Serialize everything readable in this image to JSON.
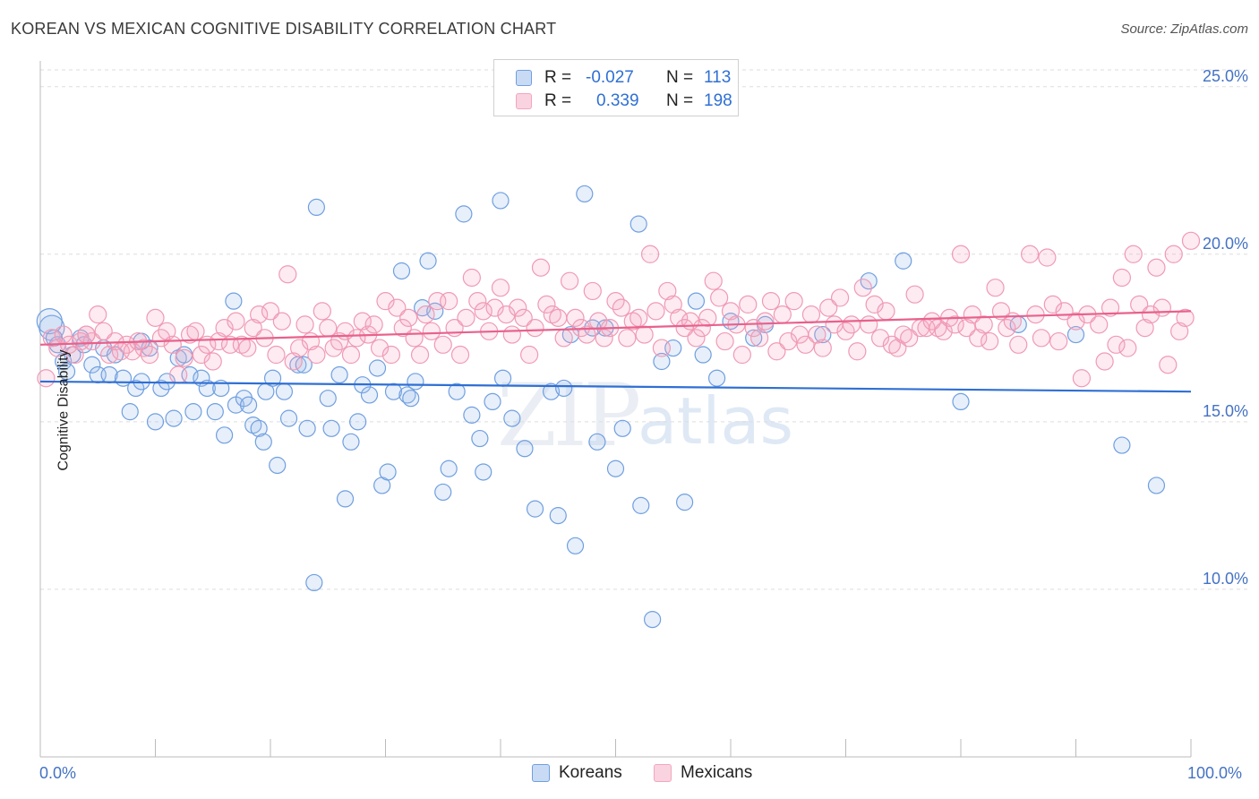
{
  "title": "KOREAN VS MEXICAN COGNITIVE DISABILITY CORRELATION CHART",
  "source": "Source: ZipAtlas.com",
  "watermark": {
    "zip": "ZIP",
    "atlas": "atlas"
  },
  "legend": {
    "rows": [
      {
        "r_label": "R =",
        "r_value": "-0.027",
        "n_label": "N =",
        "n_value": "113",
        "color": "#a8c4ec"
      },
      {
        "r_label": "R =",
        "r_value": "0.339",
        "n_label": "N =",
        "n_value": "198",
        "color": "#f4b6c8"
      }
    ]
  },
  "bottom_legend": {
    "koreans": "Koreans",
    "mexicans": "Mexicans"
  },
  "chart_data": {
    "type": "scatter",
    "ylabel": "Cognitive Disability",
    "xlabel": "",
    "xlim": [
      0,
      100
    ],
    "ylim": [
      5.0,
      25.5
    ],
    "x_tick_labels": [
      "0.0%",
      "100.0%"
    ],
    "y_ticks": [
      10,
      15,
      20,
      25
    ],
    "y_tick_labels": [
      "10.0%",
      "15.0%",
      "20.0%",
      "25.0%"
    ],
    "grid": true,
    "legend_placement": "top-center",
    "series": [
      {
        "name": "Koreans",
        "color": "#6f9fe0",
        "trend": {
          "x": [
            0,
            100
          ],
          "y": [
            16.2,
            15.9
          ],
          "color": "#2f6fd4"
        },
        "points": [
          [
            1,
            17.8
          ],
          [
            1.5,
            17.3
          ],
          [
            2,
            16.8
          ],
          [
            2.3,
            16.5
          ],
          [
            2.8,
            17.0
          ],
          [
            3.5,
            17.5
          ],
          [
            4.5,
            16.7
          ],
          [
            5,
            16.4
          ],
          [
            5.5,
            17.2
          ],
          [
            6,
            16.4
          ],
          [
            6.5,
            17.0
          ],
          [
            7.2,
            16.3
          ],
          [
            7.8,
            15.3
          ],
          [
            8.3,
            16.0
          ],
          [
            8.8,
            16.2
          ],
          [
            9.5,
            17.2
          ],
          [
            10,
            15.0
          ],
          [
            10.5,
            16.0
          ],
          [
            11,
            16.2
          ],
          [
            11.6,
            15.1
          ],
          [
            12,
            16.9
          ],
          [
            12.5,
            17.0
          ],
          [
            13,
            16.4
          ],
          [
            13.3,
            15.3
          ],
          [
            14,
            16.3
          ],
          [
            14.5,
            16.0
          ],
          [
            15.2,
            15.3
          ],
          [
            15.7,
            16.0
          ],
          [
            16,
            14.6
          ],
          [
            16.8,
            18.6
          ],
          [
            17,
            15.5
          ],
          [
            17.7,
            15.7
          ],
          [
            18.1,
            15.5
          ],
          [
            18.5,
            14.9
          ],
          [
            19,
            14.8
          ],
          [
            19.4,
            14.4
          ],
          [
            19.6,
            15.9
          ],
          [
            20.2,
            16.3
          ],
          [
            20.6,
            13.7
          ],
          [
            21.2,
            15.9
          ],
          [
            21.6,
            15.1
          ],
          [
            22.4,
            16.7
          ],
          [
            22.9,
            16.7
          ],
          [
            23.2,
            14.8
          ],
          [
            23.8,
            10.2
          ],
          [
            24,
            21.4
          ],
          [
            25,
            15.7
          ],
          [
            25.3,
            14.8
          ],
          [
            26,
            16.4
          ],
          [
            26.5,
            12.7
          ],
          [
            27,
            14.4
          ],
          [
            27.6,
            15.0
          ],
          [
            28,
            16.1
          ],
          [
            28.6,
            15.8
          ],
          [
            29.3,
            16.6
          ],
          [
            29.7,
            13.1
          ],
          [
            30.2,
            13.5
          ],
          [
            30.7,
            15.9
          ],
          [
            31.4,
            19.5
          ],
          [
            31.9,
            15.8
          ],
          [
            32.2,
            15.7
          ],
          [
            32.6,
            16.2
          ],
          [
            33.2,
            18.4
          ],
          [
            33.7,
            19.8
          ],
          [
            34.3,
            18.3
          ],
          [
            35,
            12.9
          ],
          [
            35.5,
            13.6
          ],
          [
            36.2,
            15.9
          ],
          [
            36.8,
            21.2
          ],
          [
            37.5,
            15.2
          ],
          [
            38.2,
            14.5
          ],
          [
            38.5,
            13.5
          ],
          [
            39.3,
            15.6
          ],
          [
            40,
            21.6
          ],
          [
            40.2,
            16.3
          ],
          [
            41,
            15.1
          ],
          [
            42.1,
            14.2
          ],
          [
            43,
            12.4
          ],
          [
            44.4,
            15.9
          ],
          [
            45,
            12.2
          ],
          [
            45.5,
            16.0
          ],
          [
            46.1,
            17.6
          ],
          [
            46.5,
            11.3
          ],
          [
            47.3,
            21.8
          ],
          [
            48,
            17.8
          ],
          [
            48.4,
            14.4
          ],
          [
            49.1,
            17.8
          ],
          [
            50,
            13.6
          ],
          [
            50.6,
            14.8
          ],
          [
            52,
            20.9
          ],
          [
            52.2,
            12.5
          ],
          [
            53.2,
            9.1
          ],
          [
            54,
            16.8
          ],
          [
            55,
            17.2
          ],
          [
            56,
            12.6
          ],
          [
            57,
            18.6
          ],
          [
            57.6,
            17.0
          ],
          [
            58.8,
            16.3
          ],
          [
            60,
            18.0
          ],
          [
            62,
            17.5
          ],
          [
            63,
            17.9
          ],
          [
            68,
            17.6
          ],
          [
            72,
            19.2
          ],
          [
            75,
            19.8
          ],
          [
            80,
            15.6
          ],
          [
            85,
            17.9
          ],
          [
            90,
            17.6
          ],
          [
            94,
            14.3
          ],
          [
            97,
            13.1
          ],
          [
            0.8,
            18.0
          ],
          [
            1.2,
            17.5
          ],
          [
            3.8,
            17.3
          ],
          [
            8.8,
            17.4
          ]
        ]
      },
      {
        "name": "Mexicans",
        "color": "#f4a6be",
        "trend": {
          "x": [
            0,
            100
          ],
          "y": [
            17.3,
            18.3
          ],
          "color": "#e8618c"
        },
        "points": [
          [
            0.5,
            16.3
          ],
          [
            1,
            17.5
          ],
          [
            1.5,
            17.2
          ],
          [
            2,
            17.6
          ],
          [
            2.5,
            17.3
          ],
          [
            3,
            17.0
          ],
          [
            3.5,
            17.4
          ],
          [
            4,
            17.6
          ],
          [
            4.5,
            17.4
          ],
          [
            5,
            18.2
          ],
          [
            5.5,
            17.7
          ],
          [
            6,
            17.0
          ],
          [
            6.5,
            17.4
          ],
          [
            7,
            17.1
          ],
          [
            7.5,
            17.3
          ],
          [
            8,
            17.1
          ],
          [
            8.5,
            17.4
          ],
          [
            9,
            17.2
          ],
          [
            9.5,
            17.0
          ],
          [
            10,
            18.1
          ],
          [
            10.5,
            17.5
          ],
          [
            11,
            17.7
          ],
          [
            11.5,
            17.3
          ],
          [
            12,
            16.4
          ],
          [
            12.5,
            16.9
          ],
          [
            13,
            17.6
          ],
          [
            13.5,
            17.7
          ],
          [
            14,
            17.0
          ],
          [
            14.5,
            17.3
          ],
          [
            15,
            16.8
          ],
          [
            15.5,
            17.4
          ],
          [
            16,
            17.8
          ],
          [
            16.5,
            17.3
          ],
          [
            17,
            18.0
          ],
          [
            17.5,
            17.3
          ],
          [
            18,
            17.2
          ],
          [
            18.5,
            17.8
          ],
          [
            19,
            18.2
          ],
          [
            19.5,
            17.5
          ],
          [
            20,
            18.3
          ],
          [
            20.5,
            17.0
          ],
          [
            21,
            18.0
          ],
          [
            21.5,
            19.4
          ],
          [
            22,
            16.8
          ],
          [
            22.5,
            17.2
          ],
          [
            23,
            17.9
          ],
          [
            23.5,
            17.4
          ],
          [
            24,
            17.0
          ],
          [
            24.5,
            18.3
          ],
          [
            25,
            17.8
          ],
          [
            25.5,
            17.2
          ],
          [
            26,
            17.4
          ],
          [
            26.5,
            17.7
          ],
          [
            27,
            17.0
          ],
          [
            27.5,
            17.5
          ],
          [
            28,
            18.0
          ],
          [
            28.5,
            17.6
          ],
          [
            29,
            17.9
          ],
          [
            29.5,
            17.2
          ],
          [
            30,
            18.6
          ],
          [
            30.5,
            17.0
          ],
          [
            31,
            18.4
          ],
          [
            31.5,
            17.8
          ],
          [
            32,
            18.1
          ],
          [
            32.5,
            17.5
          ],
          [
            33,
            17.0
          ],
          [
            33.5,
            18.2
          ],
          [
            34,
            17.7
          ],
          [
            34.5,
            18.6
          ],
          [
            35,
            17.3
          ],
          [
            35.5,
            18.6
          ],
          [
            36,
            17.8
          ],
          [
            36.5,
            17.0
          ],
          [
            37,
            18.1
          ],
          [
            37.5,
            19.3
          ],
          [
            38,
            18.6
          ],
          [
            38.5,
            18.3
          ],
          [
            39,
            17.7
          ],
          [
            39.5,
            18.4
          ],
          [
            40,
            19.0
          ],
          [
            40.5,
            18.2
          ],
          [
            41,
            17.6
          ],
          [
            41.5,
            18.4
          ],
          [
            42,
            18.1
          ],
          [
            42.5,
            17.0
          ],
          [
            43,
            17.8
          ],
          [
            43.5,
            19.6
          ],
          [
            44,
            18.5
          ],
          [
            44.5,
            18.2
          ],
          [
            45,
            18.1
          ],
          [
            45.5,
            17.5
          ],
          [
            46,
            19.2
          ],
          [
            46.5,
            18.1
          ],
          [
            47,
            17.8
          ],
          [
            47.5,
            17.6
          ],
          [
            48,
            18.9
          ],
          [
            48.5,
            18.0
          ],
          [
            49,
            17.5
          ],
          [
            49.5,
            17.8
          ],
          [
            50,
            18.6
          ],
          [
            50.5,
            18.4
          ],
          [
            51,
            17.5
          ],
          [
            51.5,
            18.0
          ],
          [
            52,
            18.1
          ],
          [
            52.5,
            17.6
          ],
          [
            53,
            20.0
          ],
          [
            53.5,
            18.3
          ],
          [
            54,
            17.2
          ],
          [
            54.5,
            18.9
          ],
          [
            55,
            18.5
          ],
          [
            55.5,
            18.1
          ],
          [
            56,
            17.8
          ],
          [
            56.5,
            18.0
          ],
          [
            57,
            17.5
          ],
          [
            57.5,
            17.8
          ],
          [
            58,
            18.1
          ],
          [
            58.5,
            19.2
          ],
          [
            59,
            18.7
          ],
          [
            59.5,
            17.4
          ],
          [
            60,
            18.3
          ],
          [
            60.5,
            17.9
          ],
          [
            61,
            17.0
          ],
          [
            61.5,
            18.5
          ],
          [
            62,
            17.8
          ],
          [
            62.5,
            17.5
          ],
          [
            63,
            18.0
          ],
          [
            63.5,
            18.6
          ],
          [
            64,
            17.1
          ],
          [
            64.5,
            18.2
          ],
          [
            65,
            17.4
          ],
          [
            65.5,
            18.6
          ],
          [
            66,
            17.6
          ],
          [
            66.5,
            17.3
          ],
          [
            67,
            18.2
          ],
          [
            67.5,
            17.6
          ],
          [
            68,
            17.2
          ],
          [
            68.5,
            18.4
          ],
          [
            69,
            17.9
          ],
          [
            69.5,
            18.7
          ],
          [
            70,
            17.7
          ],
          [
            70.5,
            17.9
          ],
          [
            71,
            17.1
          ],
          [
            71.5,
            19.0
          ],
          [
            72,
            17.9
          ],
          [
            72.5,
            18.5
          ],
          [
            73,
            17.5
          ],
          [
            73.5,
            18.3
          ],
          [
            74,
            17.3
          ],
          [
            74.5,
            17.2
          ],
          [
            75,
            17.6
          ],
          [
            75.5,
            17.5
          ],
          [
            76,
            18.8
          ],
          [
            76.5,
            17.8
          ],
          [
            77,
            17.8
          ],
          [
            77.5,
            18.0
          ],
          [
            78,
            17.8
          ],
          [
            78.5,
            17.7
          ],
          [
            79,
            18.1
          ],
          [
            79.5,
            17.9
          ],
          [
            80,
            20.0
          ],
          [
            80.5,
            17.8
          ],
          [
            81,
            18.2
          ],
          [
            81.5,
            17.5
          ],
          [
            82,
            17.9
          ],
          [
            82.5,
            17.4
          ],
          [
            83,
            19.0
          ],
          [
            83.5,
            18.3
          ],
          [
            84,
            17.8
          ],
          [
            84.5,
            18.0
          ],
          [
            85,
            17.3
          ],
          [
            86,
            20.0
          ],
          [
            86.5,
            18.2
          ],
          [
            87,
            17.5
          ],
          [
            87.5,
            19.9
          ],
          [
            88,
            18.5
          ],
          [
            88.5,
            17.4
          ],
          [
            89,
            18.3
          ],
          [
            90,
            18.0
          ],
          [
            90.5,
            16.3
          ],
          [
            91,
            18.2
          ],
          [
            92,
            17.9
          ],
          [
            92.5,
            16.8
          ],
          [
            93,
            18.4
          ],
          [
            93.5,
            17.3
          ],
          [
            94,
            19.3
          ],
          [
            94.5,
            17.2
          ],
          [
            95,
            20.0
          ],
          [
            95.5,
            18.5
          ],
          [
            96,
            17.8
          ],
          [
            96.5,
            18.2
          ],
          [
            97,
            19.6
          ],
          [
            97.5,
            18.4
          ],
          [
            98,
            16.7
          ],
          [
            98.5,
            20.0
          ],
          [
            99,
            17.7
          ],
          [
            99.5,
            18.1
          ],
          [
            100,
            20.4
          ],
          [
            4,
            17.6
          ]
        ]
      }
    ]
  }
}
